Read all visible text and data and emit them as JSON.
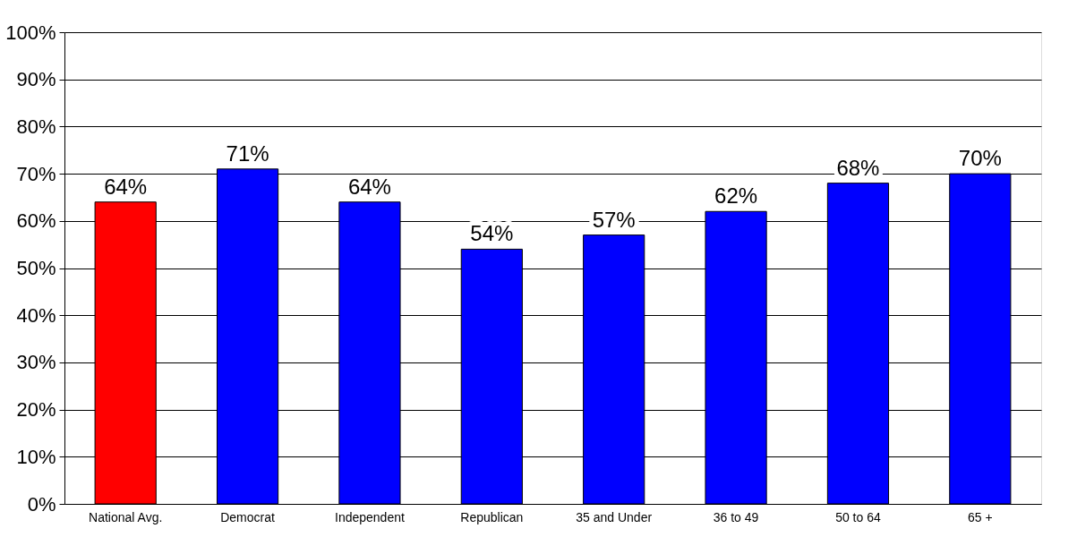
{
  "chart_data": {
    "type": "bar",
    "categories": [
      "National Avg.",
      "Democrat",
      "Independent",
      "Republican",
      "35 and Under",
      "36 to 49",
      "50 to 64",
      "65 +"
    ],
    "values": [
      64,
      71,
      64,
      54,
      57,
      62,
      68,
      70
    ],
    "colors": [
      "#ff0000",
      "#0000ff",
      "#0000ff",
      "#0000ff",
      "#0000ff",
      "#0000ff",
      "#0000ff",
      "#0000ff"
    ],
    "value_labels": [
      "64%",
      "71%",
      "64%",
      "54%",
      "57%",
      "62%",
      "68%",
      "70%"
    ],
    "ylim": [
      0,
      100
    ],
    "yticks": [
      {
        "value": 0,
        "label": "0%"
      },
      {
        "value": 10,
        "label": "10%"
      },
      {
        "value": 20,
        "label": "20%"
      },
      {
        "value": 30,
        "label": "30%"
      },
      {
        "value": 40,
        "label": "40%"
      },
      {
        "value": 50,
        "label": "50%"
      },
      {
        "value": 60,
        "label": "60%"
      },
      {
        "value": 70,
        "label": "70%"
      },
      {
        "value": 80,
        "label": "80%"
      },
      {
        "value": 90,
        "label": "90%"
      },
      {
        "value": 100,
        "label": "100%"
      }
    ],
    "grid": "y"
  }
}
